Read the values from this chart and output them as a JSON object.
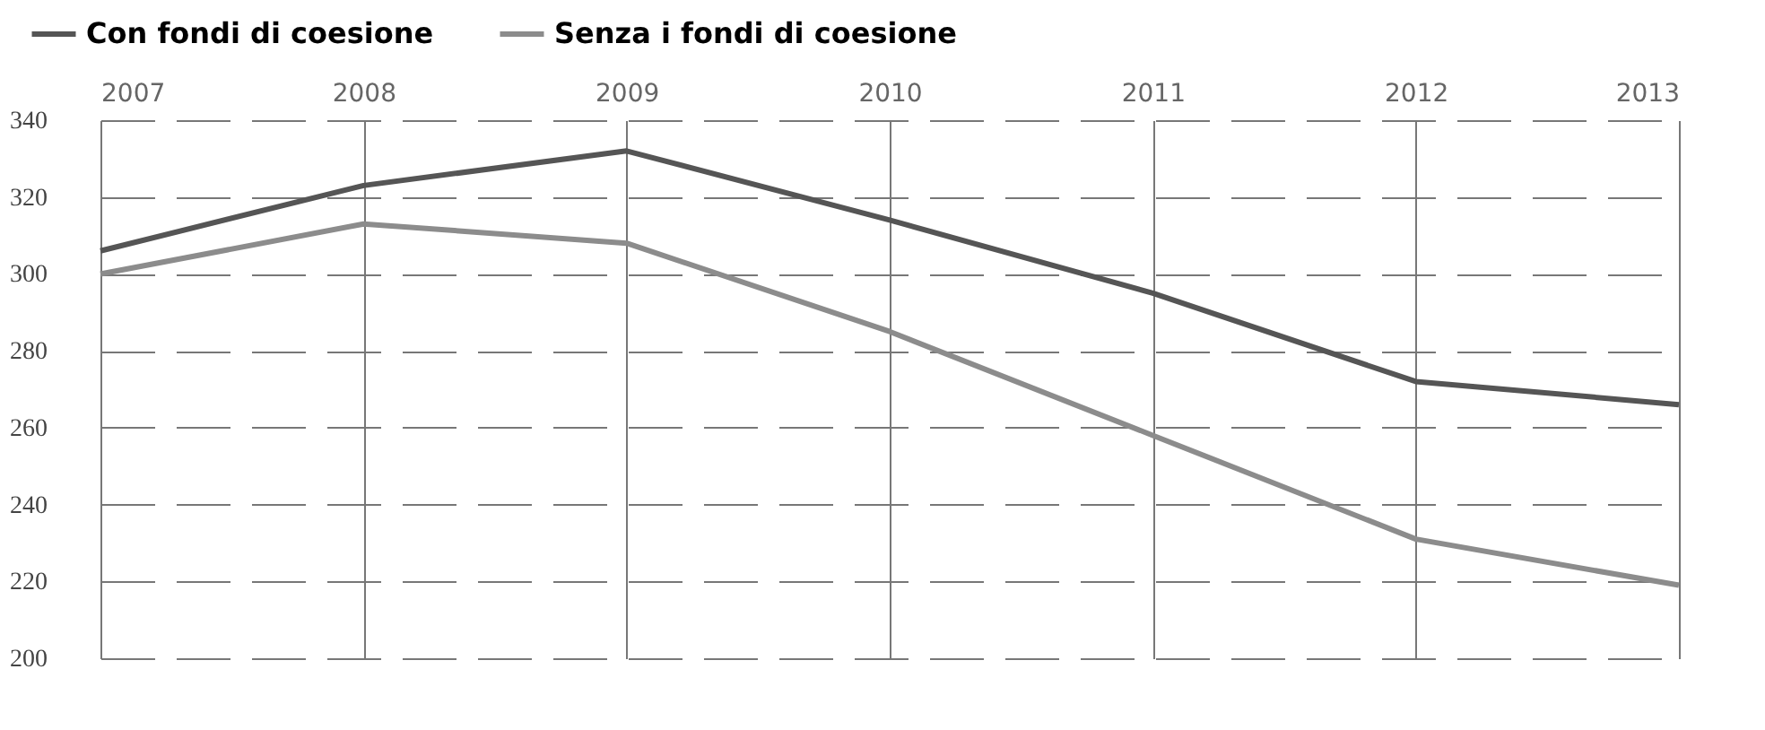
{
  "chart_data": {
    "type": "line",
    "categories": [
      "2007",
      "2008",
      "2009",
      "2010",
      "2011",
      "2012",
      "2013"
    ],
    "series": [
      {
        "name": "Con fondi di coesione",
        "color": "#555555",
        "values": [
          306,
          323,
          332,
          314,
          295,
          272,
          266
        ]
      },
      {
        "name": "Senza i fondi di coesione",
        "color": "#8c8c8c",
        "values": [
          300,
          313,
          308,
          285,
          258,
          231,
          219
        ]
      }
    ],
    "ylim": [
      200,
      340
    ],
    "yticks": [
      200,
      220,
      240,
      260,
      280,
      300,
      320,
      340
    ],
    "grid": true,
    "legend": "top left",
    "marker": "none",
    "line_style": "solid"
  }
}
